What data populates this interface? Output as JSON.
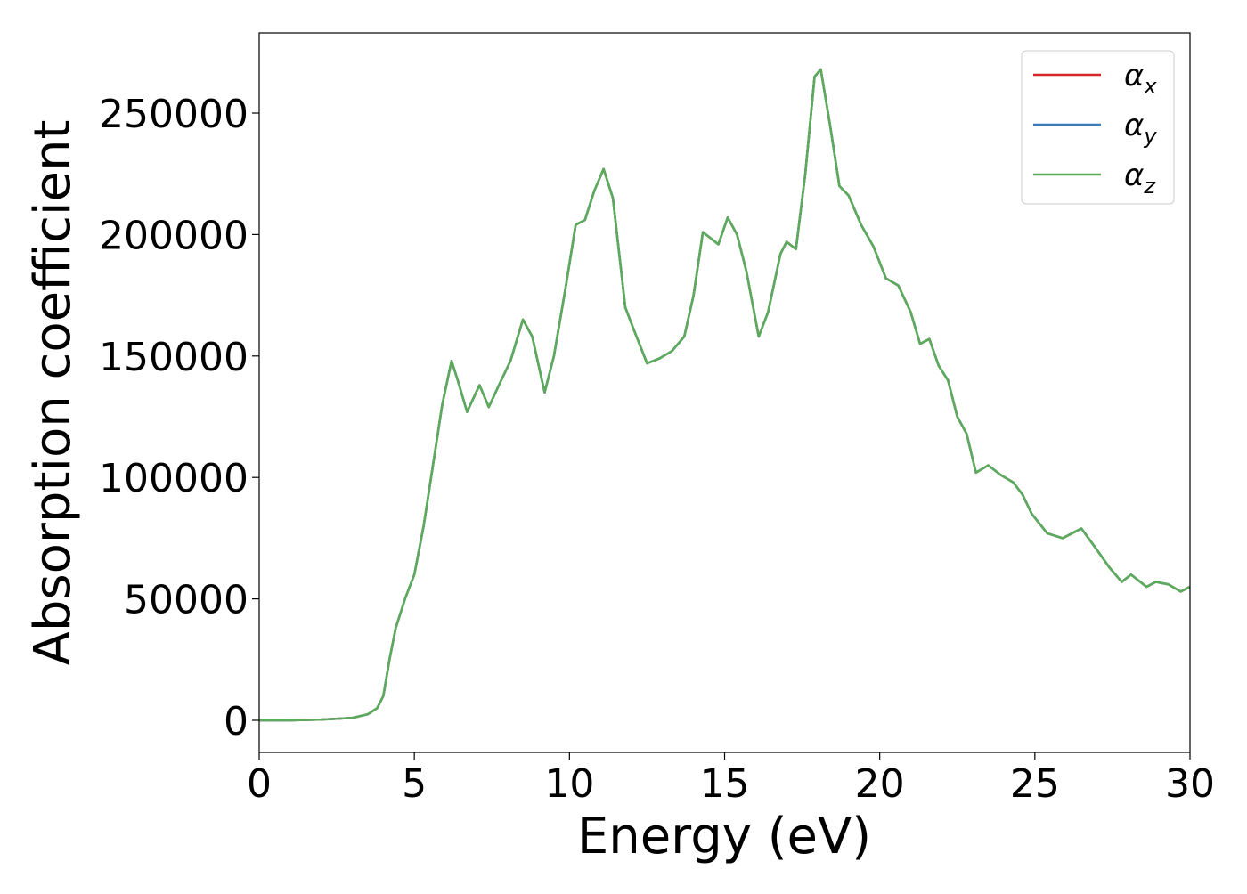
{
  "chart_data": {
    "type": "line",
    "xlabel": "Energy (eV)",
    "ylabel": "Absorption coefficient",
    "x": [
      0,
      1,
      2,
      3,
      3.5,
      3.8,
      4.0,
      4.2,
      4.4,
      4.7,
      5.0,
      5.3,
      5.6,
      5.9,
      6.2,
      6.4,
      6.7,
      7.1,
      7.4,
      7.8,
      8.1,
      8.5,
      8.8,
      9.2,
      9.5,
      9.9,
      10.2,
      10.5,
      10.8,
      11.1,
      11.4,
      11.8,
      12.1,
      12.5,
      12.9,
      13.3,
      13.7,
      14.0,
      14.3,
      14.6,
      14.8,
      15.1,
      15.4,
      15.7,
      16.1,
      16.4,
      16.8,
      17.0,
      17.3,
      17.6,
      17.9,
      18.1,
      18.4,
      18.7,
      19.0,
      19.4,
      19.8,
      20.2,
      20.6,
      21.0,
      21.3,
      21.6,
      21.9,
      22.2,
      22.5,
      22.8,
      23.1,
      23.5,
      23.9,
      24.3,
      24.6,
      24.9,
      25.4,
      25.9,
      26.5,
      26.9,
      27.4,
      27.8,
      28.1,
      28.6,
      28.9,
      29.3,
      29.7,
      30
    ],
    "series": [
      {
        "name": "αx",
        "color": "#d62728",
        "values": [
          0,
          0,
          300,
          1000,
          2500,
          5000,
          10000,
          25000,
          38000,
          50000,
          60000,
          80000,
          105000,
          130000,
          148000,
          140000,
          127000,
          138000,
          129000,
          140000,
          148000,
          165000,
          158000,
          135000,
          150000,
          180000,
          204000,
          206000,
          218000,
          227000,
          215000,
          170000,
          160000,
          147000,
          149000,
          152000,
          158000,
          175000,
          201000,
          198000,
          196000,
          207000,
          200000,
          185000,
          158000,
          168000,
          192000,
          197000,
          194000,
          225000,
          265000,
          268000,
          245000,
          220000,
          216000,
          204000,
          195000,
          182000,
          179000,
          168000,
          155000,
          157000,
          146000,
          140000,
          125000,
          118000,
          102000,
          105000,
          101000,
          98000,
          93000,
          85000,
          77000,
          75000,
          79000,
          72000,
          63000,
          57000,
          60000,
          55000,
          57000,
          56000,
          53000,
          55000
        ]
      },
      {
        "name": "αy",
        "color": "#3a7db8",
        "values": [
          0,
          0,
          300,
          1000,
          2500,
          5000,
          10000,
          25000,
          38000,
          50000,
          60000,
          80000,
          105000,
          130000,
          148000,
          140000,
          127000,
          138000,
          129000,
          140000,
          148000,
          165000,
          158000,
          135000,
          150000,
          180000,
          204000,
          206000,
          218000,
          227000,
          215000,
          170000,
          160000,
          147000,
          149000,
          152000,
          158000,
          175000,
          201000,
          198000,
          196000,
          207000,
          200000,
          185000,
          158000,
          168000,
          192000,
          197000,
          194000,
          225000,
          265000,
          268000,
          245000,
          220000,
          216000,
          204000,
          195000,
          182000,
          179000,
          168000,
          155000,
          157000,
          146000,
          140000,
          125000,
          118000,
          102000,
          105000,
          101000,
          98000,
          93000,
          85000,
          77000,
          75000,
          79000,
          72000,
          63000,
          57000,
          60000,
          55000,
          57000,
          56000,
          53000,
          55000
        ]
      },
      {
        "name": "αz",
        "color": "#5aac5a",
        "values": [
          0,
          0,
          300,
          1000,
          2500,
          5000,
          10000,
          25000,
          38000,
          50000,
          60000,
          80000,
          105000,
          130000,
          148000,
          140000,
          127000,
          138000,
          129000,
          140000,
          148000,
          165000,
          158000,
          135000,
          150000,
          180000,
          204000,
          206000,
          218000,
          227000,
          215000,
          170000,
          160000,
          147000,
          149000,
          152000,
          158000,
          175000,
          201000,
          198000,
          196000,
          207000,
          200000,
          185000,
          158000,
          168000,
          192000,
          197000,
          194000,
          225000,
          265000,
          268000,
          245000,
          220000,
          216000,
          204000,
          195000,
          182000,
          179000,
          168000,
          155000,
          157000,
          146000,
          140000,
          125000,
          118000,
          102000,
          105000,
          101000,
          98000,
          93000,
          85000,
          77000,
          75000,
          79000,
          72000,
          63000,
          57000,
          60000,
          55000,
          57000,
          56000,
          53000,
          55000
        ]
      }
    ],
    "xlim": [
      0,
      30
    ],
    "ylim": [
      -13200,
      283000
    ],
    "xticks": [
      0,
      5,
      10,
      15,
      20,
      25,
      30
    ],
    "yticks": [
      0,
      50000,
      100000,
      150000,
      200000,
      250000
    ],
    "grid": false,
    "legend": "upper right"
  }
}
